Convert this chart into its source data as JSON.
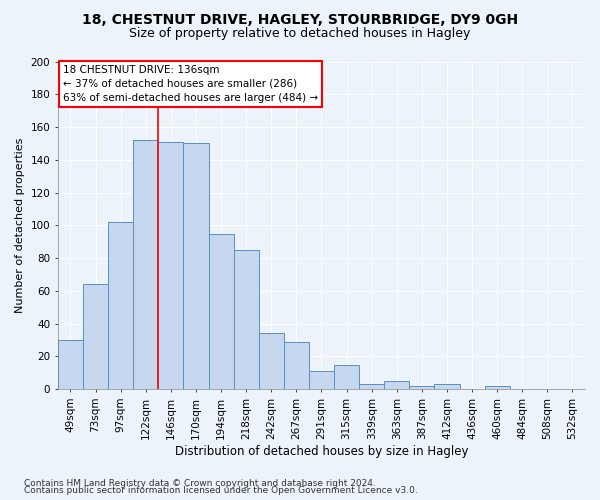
{
  "title1": "18, CHESTNUT DRIVE, HAGLEY, STOURBRIDGE, DY9 0GH",
  "title2": "Size of property relative to detached houses in Hagley",
  "xlabel": "Distribution of detached houses by size in Hagley",
  "ylabel": "Number of detached properties",
  "bar_labels": [
    "49sqm",
    "73sqm",
    "97sqm",
    "122sqm",
    "146sqm",
    "170sqm",
    "194sqm",
    "218sqm",
    "242sqm",
    "267sqm",
    "291sqm",
    "315sqm",
    "339sqm",
    "363sqm",
    "387sqm",
    "412sqm",
    "436sqm",
    "460sqm",
    "484sqm",
    "508sqm",
    "532sqm"
  ],
  "bar_heights": [
    30,
    64,
    102,
    152,
    151,
    150,
    95,
    85,
    34,
    29,
    11,
    15,
    3,
    5,
    2,
    3,
    0,
    2,
    0,
    0,
    0
  ],
  "bar_color": "#C5D8F0",
  "bar_edge_color": "#5A8FC3",
  "vline_x": 3.5,
  "vline_color": "red",
  "annotation_line1": "18 CHESTNUT DRIVE: 136sqm",
  "annotation_line2": "← 37% of detached houses are smaller (286)",
  "annotation_line3": "63% of semi-detached houses are larger (484) →",
  "annotation_box_color": "white",
  "annotation_box_edge": "red",
  "ylim": [
    0,
    200
  ],
  "yticks": [
    0,
    20,
    40,
    60,
    80,
    100,
    120,
    140,
    160,
    180,
    200
  ],
  "footer1": "Contains HM Land Registry data © Crown copyright and database right 2024.",
  "footer2": "Contains public sector information licensed under the Open Government Licence v3.0.",
  "bg_color": "#EDF3FB",
  "plot_bg_color": "#EDF3FB",
  "grid_color": "white",
  "title1_fontsize": 10,
  "title2_fontsize": 9,
  "xlabel_fontsize": 8.5,
  "ylabel_fontsize": 8,
  "tick_fontsize": 7.5,
  "annotation_fontsize": 7.5,
  "footer_fontsize": 6.5
}
